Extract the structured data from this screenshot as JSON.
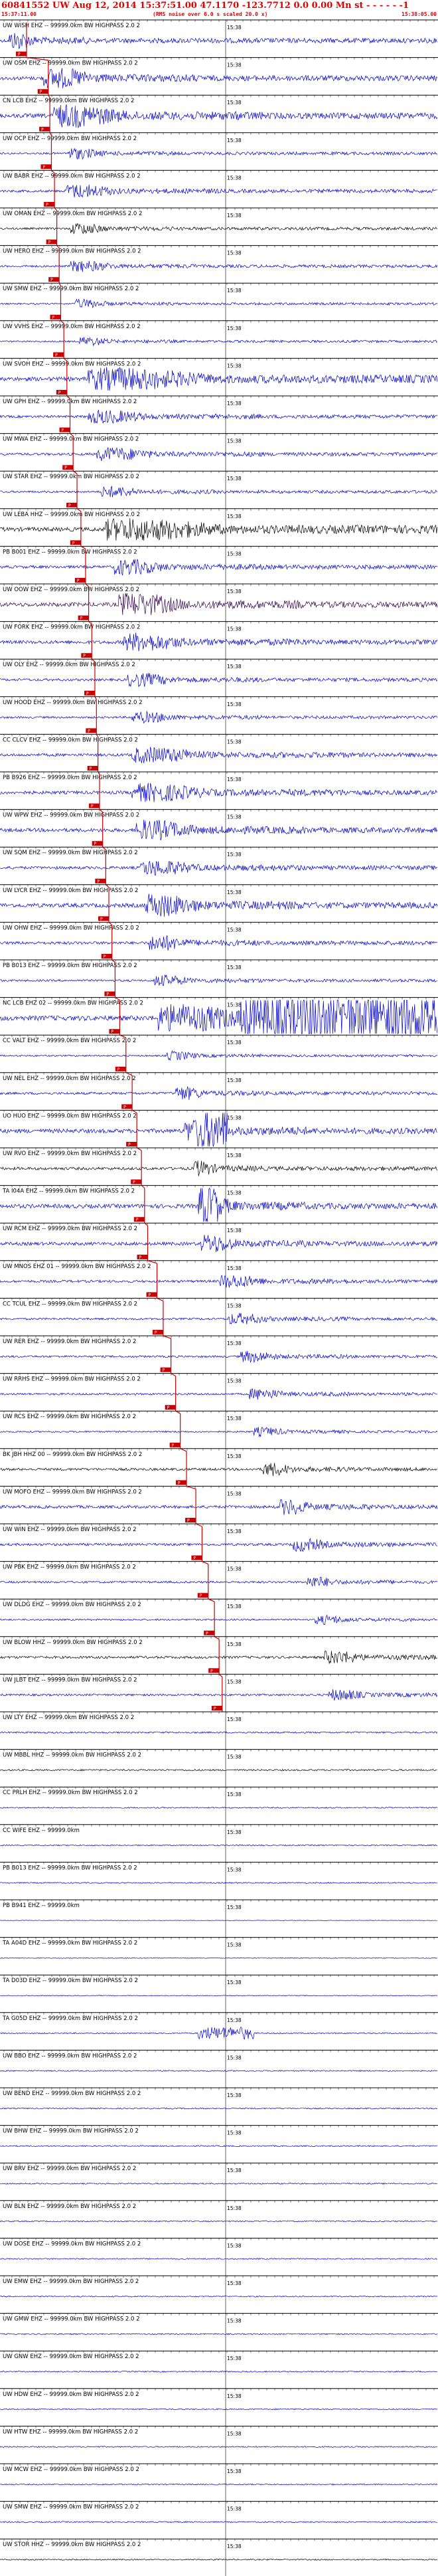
{
  "header": {
    "title": "60841552 UW Aug 12, 2014 15:37:51.00   47.1170 -123.7712  0.0 0.00 Mn st - - - - - -1",
    "start_time": "15:37:11.00",
    "noise_note": "(RMS noise over 6.0 s scaled 20.0 x)",
    "end_time": "15:38:05.00"
  },
  "colors": {
    "header_red": "#e00000",
    "trace_blue": "#0000cc",
    "trace_black": "#000000",
    "trace_purple": "#30004a",
    "grid": "#000000",
    "pick_red": "#cc0000"
  },
  "chart_data": {
    "type": "line",
    "x_unit": "time (HH:MM:SS)",
    "x_range": [
      "15:37:11.00",
      "15:38:05.00"
    ],
    "time_tick_label": "15:38",
    "pick_label": "P",
    "rows": [
      {
        "label": "UW WISH EHZ -- 99999.0km BW  HIGHPASS  2.0  2",
        "amp": 0.8,
        "color": "blue",
        "pick_s": 0.0,
        "burst": [
          0.02,
          0.2
        ]
      },
      {
        "label": "UW OSM EHZ -- 99999.0km BW  HIGHPASS  2.0  2",
        "amp": 0.9,
        "color": "blue",
        "pick_s": 2.8,
        "burst": [
          0.1,
          0.45
        ]
      },
      {
        "label": "CN LCB EHZ -- 99999.0km BW  HIGHPASS  2.0  2",
        "amp": 1.0,
        "color": "blue",
        "pick_s": 3.0,
        "burst": [
          0.12,
          0.6
        ]
      },
      {
        "label": "UW OCP EHZ -- 99999.0km BW  HIGHPASS  2.0  2",
        "amp": 0.5,
        "color": "blue",
        "pick_s": 3.2,
        "burst": [
          0.15,
          0.4
        ]
      },
      {
        "label": "UW BABR EHZ -- 99999.0km BW  HIGHPASS  2.0  2",
        "amp": 0.6,
        "color": "blue",
        "pick_s": 3.6,
        "burst": [
          0.15,
          0.5
        ]
      },
      {
        "label": "UW OMAN EHZ -- 99999.0km BW  HIGHPASS  2.0  2",
        "amp": 0.5,
        "color": "black",
        "pick_s": 3.9,
        "burst": [
          0.16,
          0.4
        ]
      },
      {
        "label": "UW HERO EHZ -- 99999.0km BW  HIGHPASS  2.0  2",
        "amp": 0.5,
        "color": "blue",
        "pick_s": 4.2,
        "burst": [
          0.16,
          0.45
        ]
      },
      {
        "label": "UW SMW EHZ -- 99999.0km BW  HIGHPASS  2.0  2",
        "amp": 0.4,
        "color": "blue",
        "pick_s": 4.4,
        "burst": [
          0.17,
          0.4
        ]
      },
      {
        "label": "UW VVHS EHZ -- 99999.0km BW  HIGHPASS  2.0  2",
        "amp": 0.4,
        "color": "blue",
        "pick_s": 4.8,
        "burst": [
          0.18,
          0.4
        ]
      },
      {
        "label": "UW SVOH EHZ -- 99999.0km BW  HIGHPASS  2.0  2",
        "amp": 1.0,
        "color": "blue",
        "pick_s": 5.2,
        "burst": [
          0.2,
          1.0
        ]
      },
      {
        "label": "UW GPH EHZ -- 99999.0km BW  HIGHPASS  2.0  2",
        "amp": 0.6,
        "color": "blue",
        "pick_s": 5.6,
        "burst": [
          0.2,
          0.6
        ]
      },
      {
        "label": "UW MWA EHZ -- 99999.0km BW  HIGHPASS  2.0  2",
        "amp": 0.6,
        "color": "blue",
        "pick_s": 6.0,
        "burst": [
          0.22,
          0.6
        ]
      },
      {
        "label": "UW STAR EHZ -- 99999.0km BW  HIGHPASS  2.0  2",
        "amp": 0.5,
        "color": "blue",
        "pick_s": 6.5,
        "burst": [
          0.23,
          0.5
        ]
      },
      {
        "label": "UW LEBA HHZ -- 99999.0km BW  HIGHPASS  2.0  2",
        "amp": 1.0,
        "color": "black",
        "pick_s": 7.0,
        "burst": [
          0.24,
          1.0
        ]
      },
      {
        "label": "PB B001 EHZ -- 99999.0km BW  HIGHPASS  2.0  2",
        "amp": 0.7,
        "color": "blue",
        "pick_s": 7.6,
        "burst": [
          0.26,
          0.6
        ]
      },
      {
        "label": "UW OOW EHZ -- 99999.0km BW  HIGHPASS  2.0  2",
        "amp": 1.0,
        "color": "purple",
        "pick_s": 8.0,
        "burst": [
          0.27,
          0.7
        ]
      },
      {
        "label": "UW FORK EHZ -- 99999.0km BW  HIGHPASS  2.0  2",
        "amp": 0.8,
        "color": "blue",
        "pick_s": 8.4,
        "burst": [
          0.28,
          0.7
        ]
      },
      {
        "label": "UW OLY EHZ -- 99999.0km BW  HIGHPASS  2.0  2",
        "amp": 0.6,
        "color": "blue",
        "pick_s": 8.8,
        "burst": [
          0.29,
          0.6
        ]
      },
      {
        "label": "UW HOOD EHZ -- 99999.0km BW  HIGHPASS  2.0  2",
        "amp": 0.5,
        "color": "blue",
        "pick_s": 9.0,
        "burst": [
          0.3,
          0.6
        ]
      },
      {
        "label": "CC CLCV EHZ -- 99999.0km BW  HIGHPASS  2.0  2",
        "amp": 0.7,
        "color": "blue",
        "pick_s": 9.2,
        "burst": [
          0.3,
          0.8
        ]
      },
      {
        "label": "PB B926 EHZ -- 99999.0km BW  HIGHPASS  2.0  2",
        "amp": 0.8,
        "color": "blue",
        "pick_s": 9.4,
        "burst": [
          0.3,
          0.8
        ]
      },
      {
        "label": "UW WPW EHZ -- 99999.0km BW  HIGHPASS  2.0  2",
        "amp": 0.9,
        "color": "blue",
        "pick_s": 9.8,
        "burst": [
          0.31,
          0.7
        ]
      },
      {
        "label": "UW SQM EHZ -- 99999.0km BW  HIGHPASS  2.0  2",
        "amp": 0.7,
        "color": "blue",
        "pick_s": 10.2,
        "burst": [
          0.32,
          0.7
        ]
      },
      {
        "label": "UW LYCR EHZ -- 99999.0km BW  HIGHPASS  2.0  2",
        "amp": 1.0,
        "color": "blue",
        "pick_s": 10.6,
        "burst": [
          0.33,
          0.7
        ]
      },
      {
        "label": "UW OHW EHZ -- 99999.0km BW  HIGHPASS  2.0  2",
        "amp": 0.7,
        "color": "blue",
        "pick_s": 11.0,
        "burst": [
          0.34,
          0.6
        ]
      },
      {
        "label": "PB B013 EHZ -- 99999.0km BW  HIGHPASS  2.0  2",
        "amp": 0.5,
        "color": "blue",
        "pick_s": 11.4,
        "burst": [
          0.35,
          0.6
        ]
      },
      {
        "label": "NC LCB EHZ 02 -- 99999.0km BW  HIGHPASS  2.0  2",
        "amp": 1.2,
        "color": "blue",
        "pick_s": 12.0,
        "burst": [
          0.36,
          1.0
        ],
        "clip": [
          0.55,
          1.0
        ]
      },
      {
        "label": "CC VALT EHZ -- 99999.0km BW  HIGHPASS  2.0  2",
        "amp": 0.4,
        "color": "blue",
        "pick_s": 12.8,
        "burst": [
          0.38,
          0.6
        ]
      },
      {
        "label": "UW NEL EHZ -- 99999.0km BW  HIGHPASS  2.0  2",
        "amp": 0.6,
        "color": "blue",
        "pick_s": 13.6,
        "burst": [
          0.4,
          0.6
        ]
      },
      {
        "label": "UO HUO EHZ -- 99999.0km BW  HIGHPASS  2.0  2",
        "amp": 1.0,
        "color": "blue",
        "pick_s": 14.2,
        "burst": [
          0.42,
          0.7
        ],
        "clip": [
          0.45,
          0.52
        ]
      },
      {
        "label": "UW RVO EHZ -- 99999.0km BW  HIGHPASS  2.0  2",
        "amp": 0.7,
        "color": "black",
        "pick_s": 14.8,
        "burst": [
          0.44,
          0.6
        ]
      },
      {
        "label": "TA I04A EHZ -- 99999.0km BW  HIGHPASS  2.0  2",
        "amp": 1.0,
        "color": "blue",
        "pick_s": 15.2,
        "burst": [
          0.45,
          0.7
        ],
        "clip": [
          0.45,
          0.5
        ]
      },
      {
        "label": "UW RCM EHZ -- 99999.0km BW  HIGHPASS  2.0  2",
        "amp": 0.8,
        "color": "blue",
        "pick_s": 15.6,
        "burst": [
          0.46,
          0.7
        ]
      },
      {
        "label": "UW MNOS EHZ 01 -- 99999.0km BW  HIGHPASS  2.0  2",
        "amp": 0.6,
        "color": "blue",
        "pick_s": 16.8,
        "burst": [
          0.5,
          0.8
        ]
      },
      {
        "label": "CC TCUL EHZ -- 99999.0km BW  HIGHPASS  2.0  2",
        "amp": 0.5,
        "color": "blue",
        "pick_s": 17.6,
        "burst": [
          0.52,
          0.8
        ]
      },
      {
        "label": "UW RER EHZ -- 99999.0km BW  HIGHPASS  2.0  2",
        "amp": 0.5,
        "color": "blue",
        "pick_s": 18.6,
        "burst": [
          0.55,
          0.8
        ]
      },
      {
        "label": "UW RRHS EHZ -- 99999.0km BW  HIGHPASS  2.0  2",
        "amp": 0.5,
        "color": "blue",
        "pick_s": 19.2,
        "burst": [
          0.57,
          0.8
        ]
      },
      {
        "label": "UW RCS EHZ -- 99999.0km BW  HIGHPASS  2.0  2",
        "amp": 0.4,
        "color": "blue",
        "pick_s": 19.8,
        "burst": [
          0.58,
          0.8
        ]
      },
      {
        "label": "BK JBH HHZ 00 -- 99999.0km BW  HIGHPASS  2.0  2",
        "amp": 0.6,
        "color": "black",
        "pick_s": 20.6,
        "burst": [
          0.6,
          0.8
        ]
      },
      {
        "label": "UW MOFO EHZ -- 99999.0km BW  HIGHPASS  2.0  2",
        "amp": 0.7,
        "color": "blue",
        "pick_s": 21.8,
        "burst": [
          0.64,
          0.85
        ]
      },
      {
        "label": "UW WIN EHZ -- 99999.0km BW  HIGHPASS  2.0  2",
        "amp": 0.6,
        "color": "blue",
        "pick_s": 22.6,
        "burst": [
          0.67,
          0.9
        ]
      },
      {
        "label": "UW PBK EHZ -- 99999.0km BW  HIGHPASS  2.0  2",
        "amp": 0.5,
        "color": "blue",
        "pick_s": 23.4,
        "burst": [
          0.7,
          0.9
        ]
      },
      {
        "label": "UW DLDG EHZ -- 99999.0km BW  HIGHPASS  2.0  2",
        "amp": 0.4,
        "color": "blue",
        "pick_s": 24.2,
        "burst": [
          0.72,
          0.95
        ]
      },
      {
        "label": "UW BLOW HHZ -- 99999.0km BW  HIGHPASS  2.0  2",
        "amp": 0.6,
        "color": "black",
        "pick_s": 24.8,
        "burst": [
          0.74,
          1.0
        ]
      },
      {
        "label": "UW JLBT EHZ -- 99999.0km BW  HIGHPASS  2.0  2",
        "amp": 0.5,
        "color": "blue",
        "pick_s": 25.2,
        "burst": [
          0.75,
          1.0
        ]
      },
      {
        "label": "UW LTY EHZ -- 99999.0km BW  HIGHPASS  2.0  2",
        "amp": 0.4,
        "color": "blue",
        "pick_s": null,
        "burst": [
          0,
          0
        ]
      },
      {
        "label": "UW MBBL HHZ -- 99999.0km BW  HIGHPASS  2.0  2",
        "amp": 0.4,
        "color": "black",
        "pick_s": null,
        "burst": [
          0,
          0
        ]
      },
      {
        "label": "CC PRLH EHZ -- 99999.0km BW  HIGHPASS  2.0  2",
        "amp": 0.3,
        "color": "blue",
        "pick_s": null,
        "burst": [
          0,
          0
        ]
      },
      {
        "label": "CC WIFE EHZ -- 99999.0km",
        "amp": 0.3,
        "color": "blue",
        "pick_s": null,
        "burst": [
          0,
          0
        ]
      },
      {
        "label": "PB B013 EHZ -- 99999.0km BW  HIGHPASS  2.0  2",
        "amp": 0.3,
        "color": "blue",
        "pick_s": null,
        "burst": [
          0,
          0
        ]
      },
      {
        "label": "PB B941 EHZ -- 99999.0km",
        "amp": 0.1,
        "color": "blue",
        "pick_s": null,
        "burst": [
          0,
          0
        ]
      },
      {
        "label": "TA A04D EHZ -- 99999.0km BW  HIGHPASS  2.0  2",
        "amp": 0.2,
        "color": "blue",
        "pick_s": null,
        "burst": [
          0,
          0
        ]
      },
      {
        "label": "TA D03D EHZ -- 99999.0km BW  HIGHPASS  2.0  2",
        "amp": 0.2,
        "color": "blue",
        "pick_s": null,
        "burst": [
          0,
          0
        ]
      },
      {
        "label": "TA G05D EHZ -- 99999.0km BW  HIGHPASS  2.0  2",
        "amp": 0.3,
        "color": "blue",
        "pick_s": null,
        "burst": [
          0,
          0
        ],
        "clip": [
          0.45,
          0.58
        ]
      },
      {
        "label": "UW BBO EHZ -- 99999.0km BW  HIGHPASS  2.0  2",
        "amp": 0.3,
        "color": "blue",
        "pick_s": null,
        "burst": [
          0,
          0
        ]
      },
      {
        "label": "UW BEND EHZ -- 99999.0km BW  HIGHPASS  2.0  2",
        "amp": 0.3,
        "color": "blue",
        "pick_s": null,
        "burst": [
          0,
          0
        ]
      },
      {
        "label": "UW BHW EHZ -- 99999.0km BW  HIGHPASS  2.0  2",
        "amp": 0.3,
        "color": "blue",
        "pick_s": null,
        "burst": [
          0,
          0
        ]
      },
      {
        "label": "UW BRV EHZ -- 99999.0km BW  HIGHPASS  2.0  2",
        "amp": 0.3,
        "color": "blue",
        "pick_s": null,
        "burst": [
          0,
          0
        ]
      },
      {
        "label": "UW BLN EHZ -- 99999.0km BW  HIGHPASS  2.0  2",
        "amp": 0.3,
        "color": "blue",
        "pick_s": null,
        "burst": [
          0,
          0
        ]
      },
      {
        "label": "UW DOSE EHZ -- 99999.0km BW  HIGHPASS  2.0  2",
        "amp": 0.3,
        "color": "blue",
        "pick_s": null,
        "burst": [
          0,
          0
        ]
      },
      {
        "label": "UW EMW EHZ -- 99999.0km BW  HIGHPASS  2.0  2",
        "amp": 0.3,
        "color": "blue",
        "pick_s": null,
        "burst": [
          0,
          0
        ]
      },
      {
        "label": "UW GMW EHZ -- 99999.0km BW  HIGHPASS  2.0  2",
        "amp": 0.3,
        "color": "blue",
        "pick_s": null,
        "burst": [
          0,
          0
        ]
      },
      {
        "label": "UW GNW EHZ -- 99999.0km BW  HIGHPASS  2.0  2",
        "amp": 0.3,
        "color": "blue",
        "pick_s": null,
        "burst": [
          0,
          0
        ]
      },
      {
        "label": "UW HDW EHZ -- 99999.0km BW  HIGHPASS  2.0  2",
        "amp": 0.3,
        "color": "blue",
        "pick_s": null,
        "burst": [
          0,
          0
        ]
      },
      {
        "label": "UW HTW EHZ -- 99999.0km BW  HIGHPASS  2.0  2",
        "amp": 0.3,
        "color": "blue",
        "pick_s": null,
        "burst": [
          0,
          0
        ]
      },
      {
        "label": "UW MCW EHZ -- 99999.0km BW  HIGHPASS  2.0  2",
        "amp": 0.3,
        "color": "blue",
        "pick_s": null,
        "burst": [
          0,
          0
        ]
      },
      {
        "label": "UW SMW EHZ -- 99999.0km BW  HIGHPASS  2.0  2",
        "amp": 0.3,
        "color": "blue",
        "pick_s": null,
        "burst": [
          0,
          0
        ]
      },
      {
        "label": "UW STOR HHZ -- 99999.0km BW  HIGHPASS  2.0  2",
        "amp": 0.3,
        "color": "black",
        "pick_s": null,
        "burst": [
          0,
          0
        ]
      }
    ]
  }
}
